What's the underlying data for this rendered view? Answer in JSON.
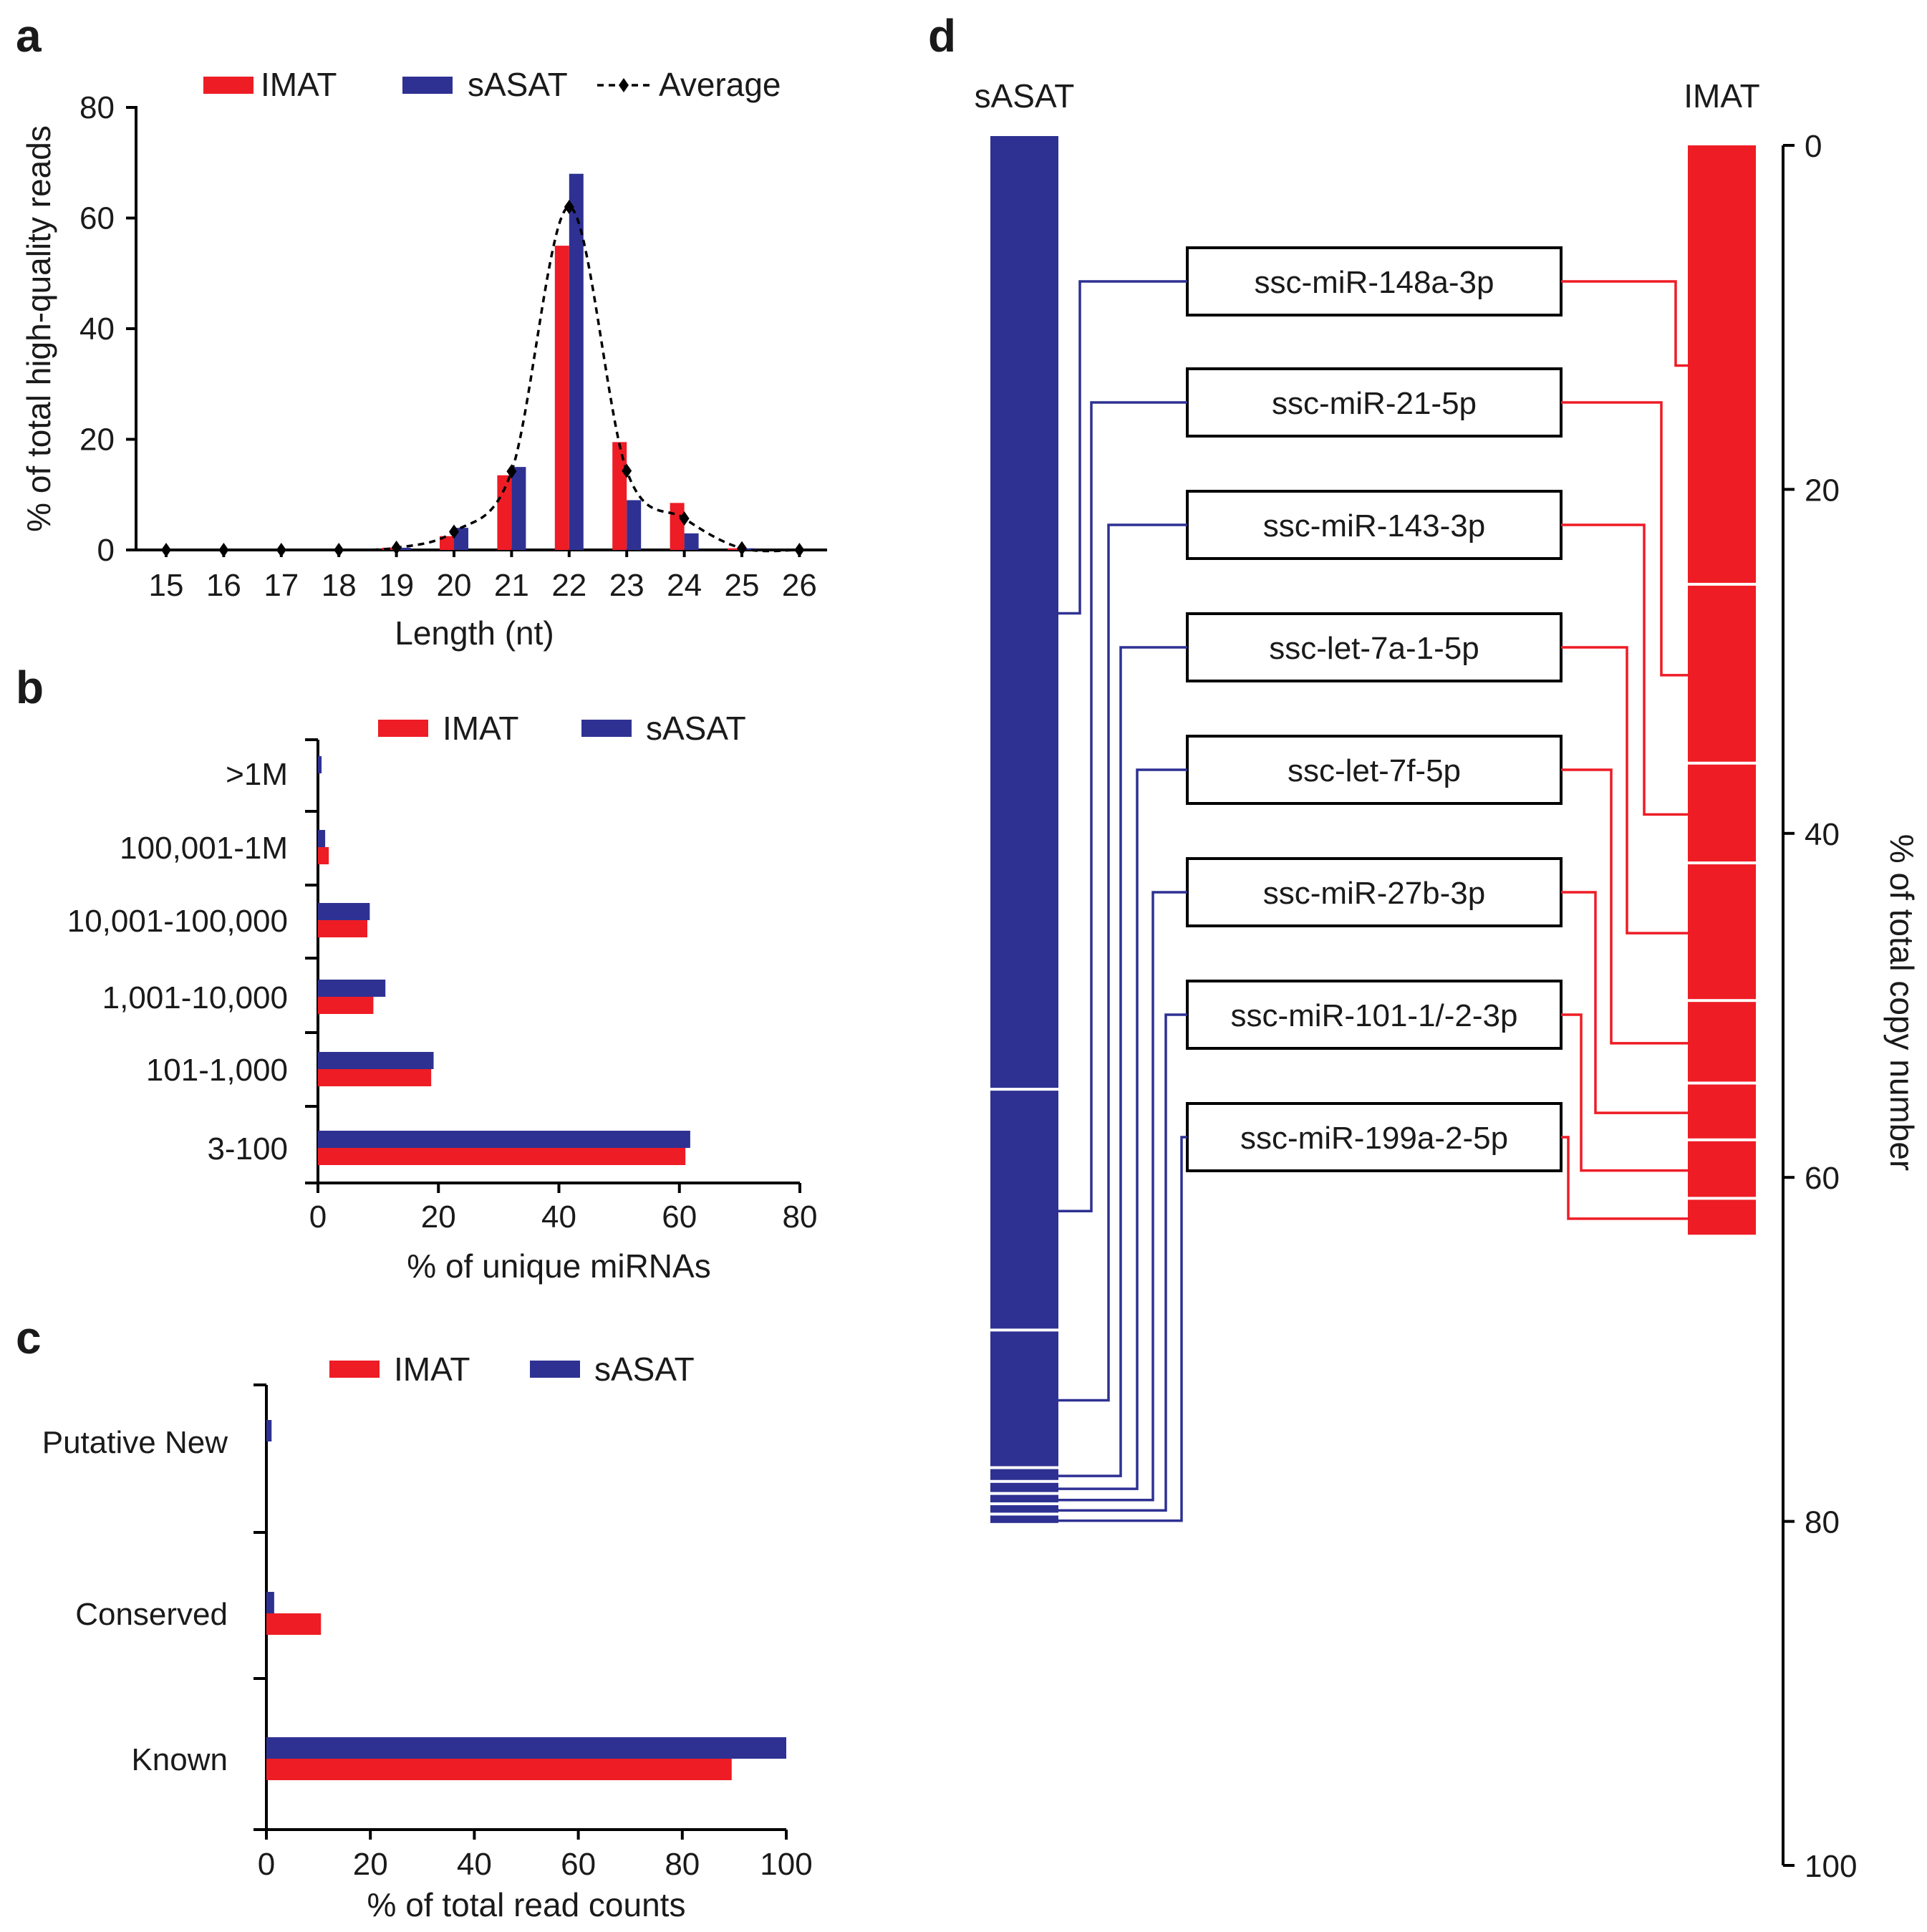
{
  "colors": {
    "imat": "#ee1c25",
    "sasat": "#2e3192",
    "average": "#000000",
    "separator": "#ffffff"
  },
  "chart_data": [
    {
      "panel": "a",
      "type": "bar",
      "title": "",
      "xlabel": "Length (nt)",
      "ylabel": "% of total high-quality reads",
      "ylim": [
        0,
        80
      ],
      "yticks": [
        "0",
        "20",
        "40",
        "60",
        "80"
      ],
      "categories": [
        "15",
        "16",
        "17",
        "18",
        "19",
        "20",
        "21",
        "22",
        "23",
        "24",
        "25",
        "26"
      ],
      "series": [
        {
          "name": "IMAT",
          "values": [
            0,
            0,
            0,
            0,
            0.4,
            2.5,
            13.5,
            55,
            19.5,
            8.5,
            0.3,
            0
          ]
        },
        {
          "name": "sASAT",
          "values": [
            0,
            0,
            0,
            0,
            0.4,
            4,
            15,
            68,
            9,
            3,
            0.3,
            0
          ]
        },
        {
          "name": "Average",
          "type": "line",
          "values": [
            0,
            0,
            0,
            0,
            0.4,
            3.3,
            14.2,
            62,
            14.3,
            5.7,
            0.3,
            0
          ]
        }
      ],
      "legend": [
        "IMAT",
        "sASAT",
        "Average"
      ],
      "legend_position": "top"
    },
    {
      "panel": "b",
      "type": "bar",
      "orientation": "horizontal",
      "xlabel": "% of unique miRNAs",
      "xlim": [
        0,
        80
      ],
      "xticks": [
        "0",
        "20",
        "40",
        "60",
        "80"
      ],
      "categories": [
        ">1M",
        "100,001-1M",
        "10,001-100,000",
        "1,001-10,000",
        "101-1,000",
        "3-100"
      ],
      "series": [
        {
          "name": "IMAT",
          "values": [
            0,
            1.8,
            8.2,
            9.2,
            18.8,
            61
          ]
        },
        {
          "name": "sASAT",
          "values": [
            0.6,
            1.2,
            8.6,
            11.2,
            19.2,
            61.8
          ]
        }
      ],
      "legend": [
        "IMAT",
        "sASAT"
      ],
      "legend_position": "top"
    },
    {
      "panel": "c",
      "type": "bar",
      "orientation": "horizontal",
      "xlabel": "% of total read counts",
      "xlim": [
        0,
        100
      ],
      "xticks": [
        "0",
        "20",
        "40",
        "60",
        "80",
        "100"
      ],
      "categories": [
        "Putative New",
        "Conserved",
        "Known"
      ],
      "series": [
        {
          "name": "IMAT",
          "values": [
            0,
            10.5,
            89.5
          ]
        },
        {
          "name": "sASAT",
          "values": [
            1,
            1.5,
            100
          ]
        }
      ],
      "legend": [
        "IMAT",
        "sASAT"
      ],
      "legend_position": "top"
    },
    {
      "panel": "d",
      "type": "stacked-bar",
      "ylabel": "% of total copy number",
      "ylim": [
        0,
        100
      ],
      "yticks": [
        "0",
        "20",
        "40",
        "60",
        "80",
        "100"
      ],
      "column_labels": [
        "sASAT",
        "IMAT"
      ],
      "mirnas": [
        "ssc-miR-148a-3p",
        "ssc-miR-21-5p",
        "ssc-miR-143-3p",
        "ssc-let-7a-1-5p",
        "ssc-let-7f-5p",
        "ssc-miR-27b-3p",
        "ssc-miR-101-1/-2-3p",
        "ssc-miR-199a-2-5p"
      ],
      "sasat_percent": [
        55.5,
        14,
        8,
        0.8,
        0.7,
        0.6,
        0.6,
        0.6
      ],
      "imat_percent": [
        25.6,
        10.4,
        5.8,
        8,
        4.8,
        3.3,
        3.4,
        2.2
      ]
    }
  ],
  "panels": {
    "a": "a",
    "b": "b",
    "c": "c",
    "d": "d"
  }
}
